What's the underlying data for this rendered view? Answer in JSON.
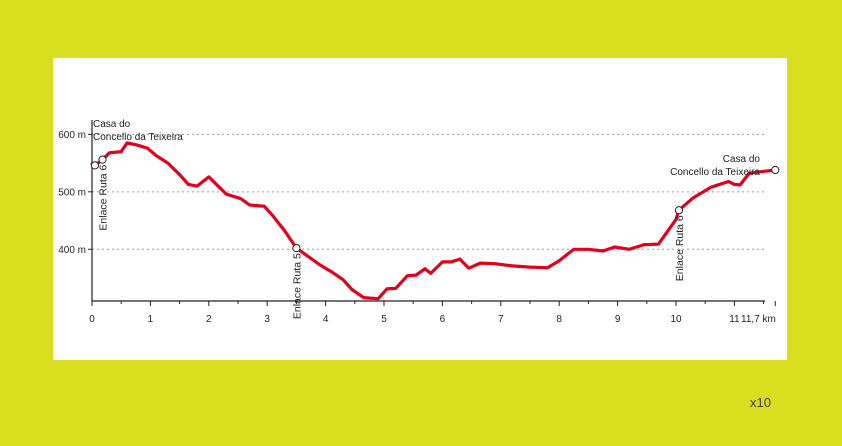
{
  "chart_data": {
    "type": "line",
    "title": "",
    "xlabel": "",
    "ylabel": "",
    "x_unit_label": "11,7 km",
    "x_ticks": [
      "0",
      "1",
      "2",
      "3",
      "4",
      "5",
      "6",
      "7",
      "8",
      "9",
      "10",
      "11"
    ],
    "y_ticks": [
      "400 m",
      "500 m",
      "600 m"
    ],
    "y_tick_values": [
      400,
      500,
      600
    ],
    "xlim": [
      0,
      11.7
    ],
    "ylim": [
      310,
      625
    ],
    "grid": "horizontal dotted",
    "line_color": "#e3001b",
    "series": [
      {
        "x": [
          0,
          0.05,
          0.18,
          0.3,
          0.5,
          0.6,
          0.75,
          0.95,
          1.1,
          1.3,
          1.5,
          1.65,
          1.8,
          2.0,
          2.3,
          2.55,
          2.7,
          2.95,
          3.1,
          3.3,
          3.5,
          3.75,
          3.9,
          4.1,
          4.3,
          4.45,
          4.65,
          4.75,
          4.9,
          5.05,
          5.2,
          5.4,
          5.55,
          5.7,
          5.8,
          6.0,
          6.15,
          6.3,
          6.45,
          6.65,
          6.9,
          7.2,
          7.5,
          7.8,
          8.0,
          8.25,
          8.5,
          8.75,
          8.95,
          9.2,
          9.45,
          9.7,
          10.0,
          10.05,
          10.3,
          10.6,
          10.9,
          11.0,
          11.1,
          11.25,
          11.45,
          11.7
        ],
        "y": [
          548,
          546,
          556,
          568,
          570,
          585,
          582,
          576,
          563,
          550,
          530,
          513,
          510,
          526,
          496,
          488,
          477,
          475,
          458,
          432,
          402,
          384,
          373,
          361,
          347,
          330,
          316,
          315,
          314,
          331,
          332,
          354,
          355,
          366,
          358,
          378,
          378,
          383,
          367,
          376,
          375,
          371,
          369,
          368,
          380,
          400,
          400,
          397,
          404,
          400,
          408,
          409,
          452,
          468,
          490,
          508,
          518,
          513,
          512,
          532,
          535,
          538
        ]
      }
    ],
    "waypoints": [
      {
        "x": 0.05,
        "y": 546,
        "label": ""
      },
      {
        "x": 0.18,
        "y": 556,
        "label": "Enlace Ruta 6"
      },
      {
        "x": 3.5,
        "y": 402,
        "label": "Enlace Ruta 5"
      },
      {
        "x": 10.05,
        "y": 468,
        "label": "Enlace Ruta 6"
      },
      {
        "x": 11.7,
        "y": 538,
        "label": ""
      }
    ],
    "annotations": {
      "start_line1": "Casa do",
      "start_line2": "Concello da Teixeira",
      "end_line1": "Casa do",
      "end_line2": "Concello da Teixeira"
    }
  },
  "footer": {
    "note": "x10"
  }
}
